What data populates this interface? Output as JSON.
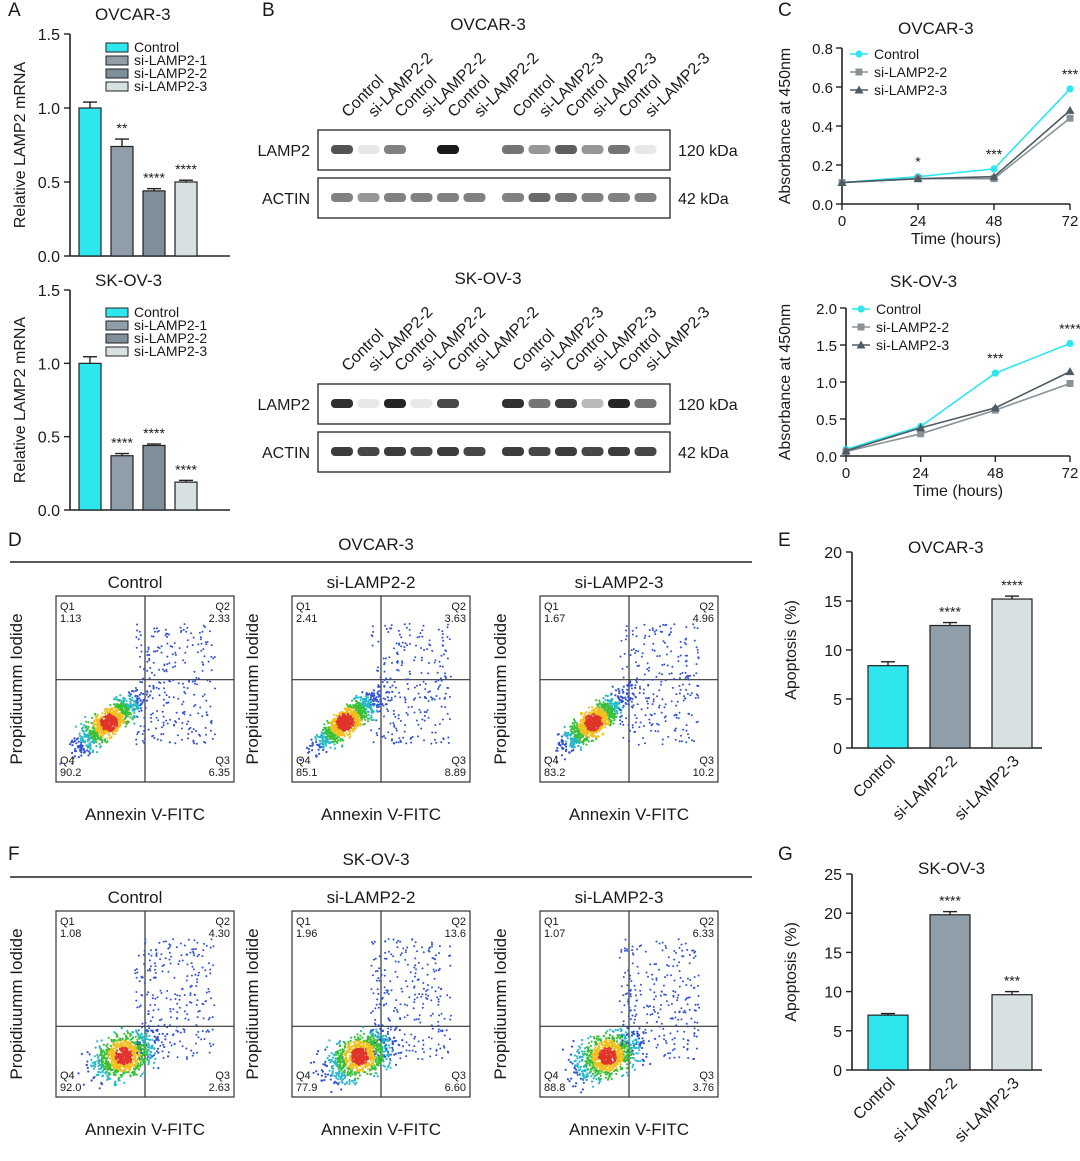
{
  "colors": {
    "control": "#2ee6ee",
    "lamp1": "#8f9ea8",
    "lamp2": "#7f8f99",
    "lamp3": "#d7e1e1",
    "sk_line2": "#8a9296",
    "sk_line3": "#4e5b63"
  },
  "panels": {
    "A": "A",
    "B": "B",
    "C": "C",
    "D": "D",
    "E": "E",
    "F": "F",
    "G": "G"
  },
  "chart_data": [
    {
      "id": "A_ovcar",
      "type": "bar",
      "title": "OVCAR-3",
      "ylabel": "Relative LAMP2 mRNA",
      "ylim": [
        0,
        1.5
      ],
      "yticks": [
        "0.0",
        "0.5",
        "1.0",
        "1.5"
      ],
      "categories": [
        "Control",
        "si-LAMP2-1",
        "si-LAMP2-2",
        "si-LAMP2-3"
      ],
      "values": [
        1.0,
        0.74,
        0.44,
        0.5
      ],
      "errors": [
        0.04,
        0.05,
        0.015,
        0.012
      ],
      "sig": [
        "",
        "**",
        "****",
        "****"
      ],
      "legend": [
        "Control",
        "si-LAMP2-1",
        "si-LAMP2-2",
        "si-LAMP2-3"
      ]
    },
    {
      "id": "A_skov",
      "type": "bar",
      "title": "SK-OV-3",
      "ylabel": "Relative LAMP2 mRNA",
      "ylim": [
        0,
        1.5
      ],
      "yticks": [
        "0.0",
        "0.5",
        "1.0",
        "1.5"
      ],
      "categories": [
        "Control",
        "si-LAMP2-1",
        "si-LAMP2-2",
        "si-LAMP2-3"
      ],
      "values": [
        1.0,
        0.37,
        0.44,
        0.19
      ],
      "errors": [
        0.045,
        0.015,
        0.01,
        0.012
      ],
      "sig": [
        "",
        "****",
        "****",
        "****"
      ],
      "legend": [
        "Control",
        "si-LAMP2-1",
        "si-LAMP2-2",
        "si-LAMP2-3"
      ]
    },
    {
      "id": "C_ovcar",
      "type": "line",
      "title": "OVCAR-3",
      "xlabel": "Time (hours)",
      "ylabel": "Absorbance at 450nm",
      "x": [
        0,
        24,
        48,
        72
      ],
      "xlim": [
        0,
        72
      ],
      "ylim": [
        0,
        0.8
      ],
      "xticks": [
        "0",
        "24",
        "48",
        "72"
      ],
      "yticks": [
        "0.0",
        "0.2",
        "0.4",
        "0.6",
        "0.8"
      ],
      "series": [
        {
          "name": "Control",
          "values": [
            0.11,
            0.14,
            0.18,
            0.59
          ]
        },
        {
          "name": "si-LAMP2-2",
          "values": [
            0.11,
            0.13,
            0.13,
            0.44
          ]
        },
        {
          "name": "si-LAMP2-3",
          "values": [
            0.11,
            0.13,
            0.14,
            0.48
          ]
        }
      ],
      "sig": [
        "",
        "*",
        "***",
        "***"
      ]
    },
    {
      "id": "C_skov",
      "type": "line",
      "title": "SK-OV-3",
      "xlabel": "Time (hours)",
      "ylabel": "Absorbance at 450nm",
      "x": [
        0,
        24,
        48,
        72
      ],
      "xlim": [
        0,
        72
      ],
      "ylim": [
        0,
        2.0
      ],
      "xticks": [
        "0",
        "24",
        "48",
        "72"
      ],
      "yticks": [
        "0.0",
        "0.5",
        "1.0",
        "1.5",
        "2.0"
      ],
      "series": [
        {
          "name": "Control",
          "values": [
            0.09,
            0.4,
            1.12,
            1.52
          ]
        },
        {
          "name": "si-LAMP2-2",
          "values": [
            0.06,
            0.3,
            0.62,
            0.98
          ]
        },
        {
          "name": "si-LAMP2-3",
          "values": [
            0.07,
            0.38,
            0.65,
            1.14
          ]
        }
      ],
      "sig": [
        "",
        "",
        "***",
        "****"
      ]
    },
    {
      "id": "E",
      "type": "bar",
      "title": "OVCAR-3",
      "ylabel": "Apoptosis (%)",
      "ylim": [
        0,
        20
      ],
      "yticks": [
        "0",
        "5",
        "10",
        "15",
        "20"
      ],
      "categories": [
        "Control",
        "si-LAMP2-2",
        "si-LAMP2-3"
      ],
      "values": [
        8.4,
        12.5,
        15.2
      ],
      "errors": [
        0.4,
        0.3,
        0.3
      ],
      "sig": [
        "",
        "****",
        "****"
      ]
    },
    {
      "id": "G",
      "type": "bar",
      "title": "SK-OV-3",
      "ylabel": "Apoptosis (%)",
      "ylim": [
        0,
        25
      ],
      "yticks": [
        "0",
        "5",
        "10",
        "15",
        "20",
        "25"
      ],
      "categories": [
        "Control",
        "si-LAMP2-2",
        "si-LAMP2-3"
      ],
      "values": [
        7.0,
        19.8,
        9.6
      ],
      "errors": [
        0.2,
        0.4,
        0.4
      ],
      "sig": [
        "",
        "****",
        "***"
      ]
    },
    {
      "id": "D_flow",
      "type": "scatter",
      "title": "OVCAR-3",
      "xlabel": "Annexin V-FITC",
      "ylabel": "Propidiuumm Iodide",
      "plots": [
        {
          "name": "Control",
          "q1": "1.13",
          "q2": "2.33",
          "q3": "6.35",
          "q4": "90.2"
        },
        {
          "name": "si-LAMP2-2",
          "q1": "2.41",
          "q2": "3.63",
          "q3": "8.89",
          "q4": "85.1"
        },
        {
          "name": "si-LAMP2-3",
          "q1": "1.67",
          "q2": "4.96",
          "q3": "10.2",
          "q4": "83.2"
        }
      ]
    },
    {
      "id": "F_flow",
      "type": "scatter",
      "title": "SK-OV-3",
      "xlabel": "Annexin V-FITC",
      "ylabel": "Propidiuumm Iodide",
      "plots": [
        {
          "name": "Control",
          "q1": "1.08",
          "q2": "4.30",
          "q3": "2.63",
          "q4": "92.0"
        },
        {
          "name": "si-LAMP2-2",
          "q1": "1.96",
          "q2": "13.6",
          "q3": "6.60",
          "q4": "77.9"
        },
        {
          "name": "si-LAMP2-3",
          "q1": "1.07",
          "q2": "6.33",
          "q3": "3.76",
          "q4": "88.8"
        }
      ]
    }
  ],
  "blots": [
    {
      "title": "OVCAR-3",
      "lanes": [
        "Control",
        "si-LAMP2-2",
        "Control",
        "si-LAMP2-2",
        "Control",
        "si-LAMP2-2",
        "Control",
        "si-LAMP2-3",
        "Control",
        "si-LAMP2-3",
        "Control",
        "si-LAMP2-3"
      ],
      "rows": [
        {
          "label": "LAMP2",
          "size": "120 kDa",
          "intensity": [
            0.75,
            0.1,
            0.55,
            0.05,
            1.0,
            0.05,
            0.6,
            0.45,
            0.7,
            0.45,
            0.6,
            0.1
          ]
        },
        {
          "label": "ACTIN",
          "size": "42 kDa",
          "intensity": [
            0.55,
            0.45,
            0.55,
            0.55,
            0.55,
            0.55,
            0.55,
            0.65,
            0.6,
            0.55,
            0.55,
            0.55
          ]
        }
      ]
    },
    {
      "title": "SK-OV-3",
      "lanes": [
        "Control",
        "si-LAMP2-2",
        "Control",
        "si-LAMP2-2",
        "Control",
        "si-LAMP2-2",
        "Control",
        "si-LAMP2-3",
        "Control",
        "si-LAMP2-3",
        "Control",
        "si-LAMP2-3"
      ],
      "rows": [
        {
          "label": "LAMP2",
          "size": "120 kDa",
          "intensity": [
            0.9,
            0.1,
            0.95,
            0.1,
            0.8,
            0.05,
            0.9,
            0.6,
            0.85,
            0.3,
            0.95,
            0.6
          ]
        },
        {
          "label": "ACTIN",
          "size": "42 kDa",
          "intensity": [
            0.85,
            0.8,
            0.85,
            0.8,
            0.85,
            0.8,
            0.85,
            0.8,
            0.85,
            0.8,
            0.85,
            0.8
          ]
        }
      ]
    }
  ]
}
